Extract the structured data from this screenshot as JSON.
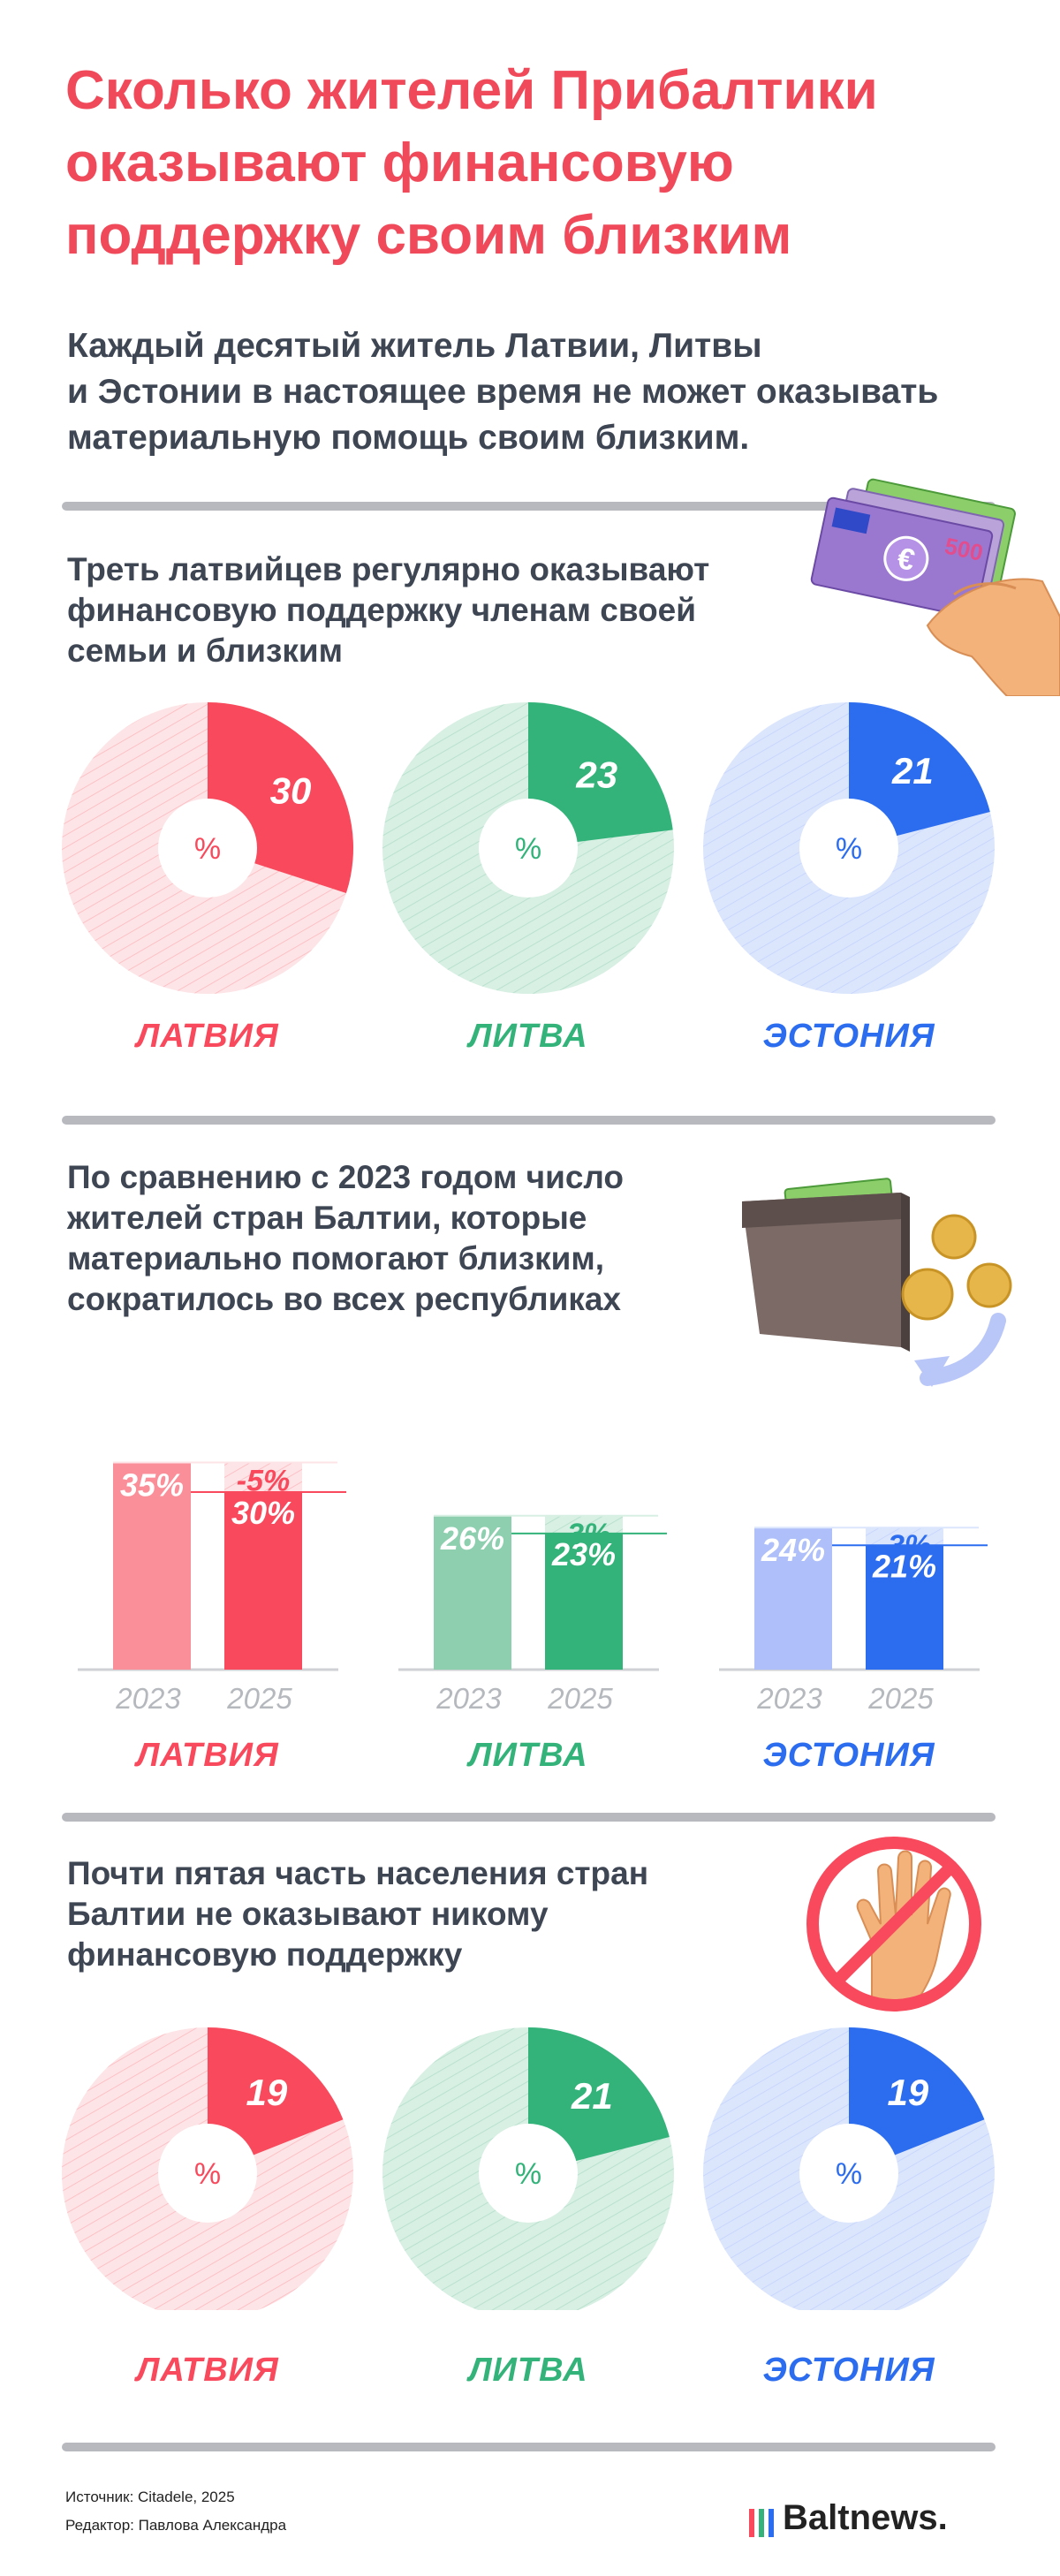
{
  "title": "Сколько жителей Прибалтики\nоказывают финансовую\nподдержку своим близким",
  "lead": "Каждый десятый житель Латвии, Литвы\nи Эстонии в настоящее время не может оказывать\nматериальную помощь своим близким.",
  "section1": {
    "title": "Треть латвийцев регулярно оказывают\nфинансовую поддержку членам своей\nсемьи и близким"
  },
  "section2": {
    "title": "По сравнению с 2023 годом число\nжителей стран Балтии, которые\nматериально помогают близким,\nсократилось во всех республиках"
  },
  "section3": {
    "title": "Почти пятая часть населения стран\nБалтии не оказывают никому\nфинансовую поддержку"
  },
  "countries": [
    "ЛАТВИЯ",
    "ЛИТВА",
    "ЭСТОНИЯ"
  ],
  "colors": {
    "latvia": "#f84a5c",
    "latvia_light": "#fde4e6",
    "latvia_mid": "#fb8f99",
    "lithuania": "#33b37a",
    "lithuania_light": "#d8efe3",
    "lithuania_mid": "#8ecfb0",
    "estonia": "#2c6df0",
    "estonia_light": "#dbe6fd",
    "estonia_mid": "#aebff9",
    "title": "#f04a5a",
    "text": "#3e4553"
  },
  "percent_symbol": "%",
  "years": [
    "2023",
    "2025"
  ],
  "chart_data": [
    {
      "type": "pie",
      "title": "Треть латвийцев регулярно оказывают финансовую поддержку членам своей семьи и близким",
      "categories": [
        "ЛАТВИЯ",
        "ЛИТВА",
        "ЭСТОНИЯ"
      ],
      "values": [
        30,
        23,
        21
      ],
      "unit": "%"
    },
    {
      "type": "bar",
      "title": "По сравнению с 2023 годом число жителей стран Балтии, которые материально помогают близким, сократилось во всех республиках",
      "groups": [
        "ЛАТВИЯ",
        "ЛИТВА",
        "ЭСТОНИЯ"
      ],
      "categories": [
        "2023",
        "2025"
      ],
      "series": [
        {
          "name": "ЛАТВИЯ",
          "values": [
            35,
            30
          ],
          "change": "-5%"
        },
        {
          "name": "ЛИТВА",
          "values": [
            26,
            23
          ],
          "change": "-3%"
        },
        {
          "name": "ЭСТОНИЯ",
          "values": [
            24,
            21
          ],
          "change": "-3%"
        }
      ],
      "unit": "%"
    },
    {
      "type": "pie",
      "title": "Почти пятая часть населения стран Балтии не оказывают никому финансовую поддержку",
      "categories": [
        "ЛАТВИЯ",
        "ЛИТВА",
        "ЭСТОНИЯ"
      ],
      "values": [
        19,
        21,
        19
      ],
      "unit": "%"
    }
  ],
  "footer": {
    "source": "Источник: Citadele, 2025",
    "editor": "Редактор: Павлова Александра",
    "logo": "Baltnews."
  },
  "icons": [
    "euro-banknotes-icon",
    "wallet-coins-icon",
    "stop-hand-icon",
    "baltnews-logo-icon"
  ]
}
